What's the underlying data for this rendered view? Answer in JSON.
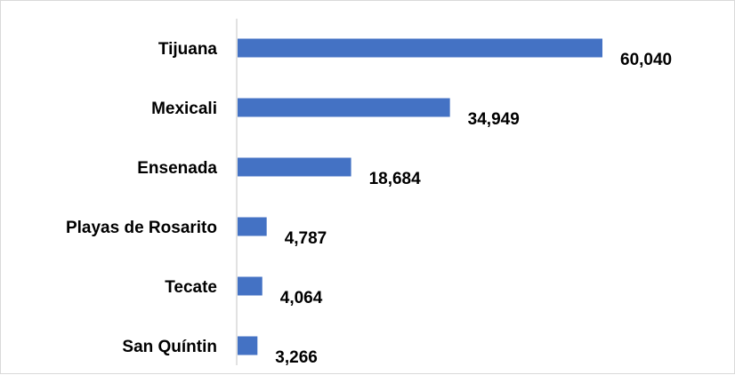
{
  "chart_data": {
    "type": "bar",
    "orientation": "horizontal",
    "categories": [
      "Tijuana",
      "Mexicali",
      "Ensenada",
      "Playas de Rosarito",
      "Tecate",
      "San Quíntin"
    ],
    "values": [
      60040,
      34949,
      18684,
      4787,
      4064,
      3266
    ],
    "value_labels": [
      "60,040",
      "34,949",
      "18,684",
      "4,787",
      "4,064",
      "3,266"
    ],
    "title": "",
    "xlabel": "",
    "ylabel": "",
    "xlim": [
      0,
      60040
    ],
    "grid": false,
    "legend": "none",
    "bar_color": "#4472c4"
  }
}
